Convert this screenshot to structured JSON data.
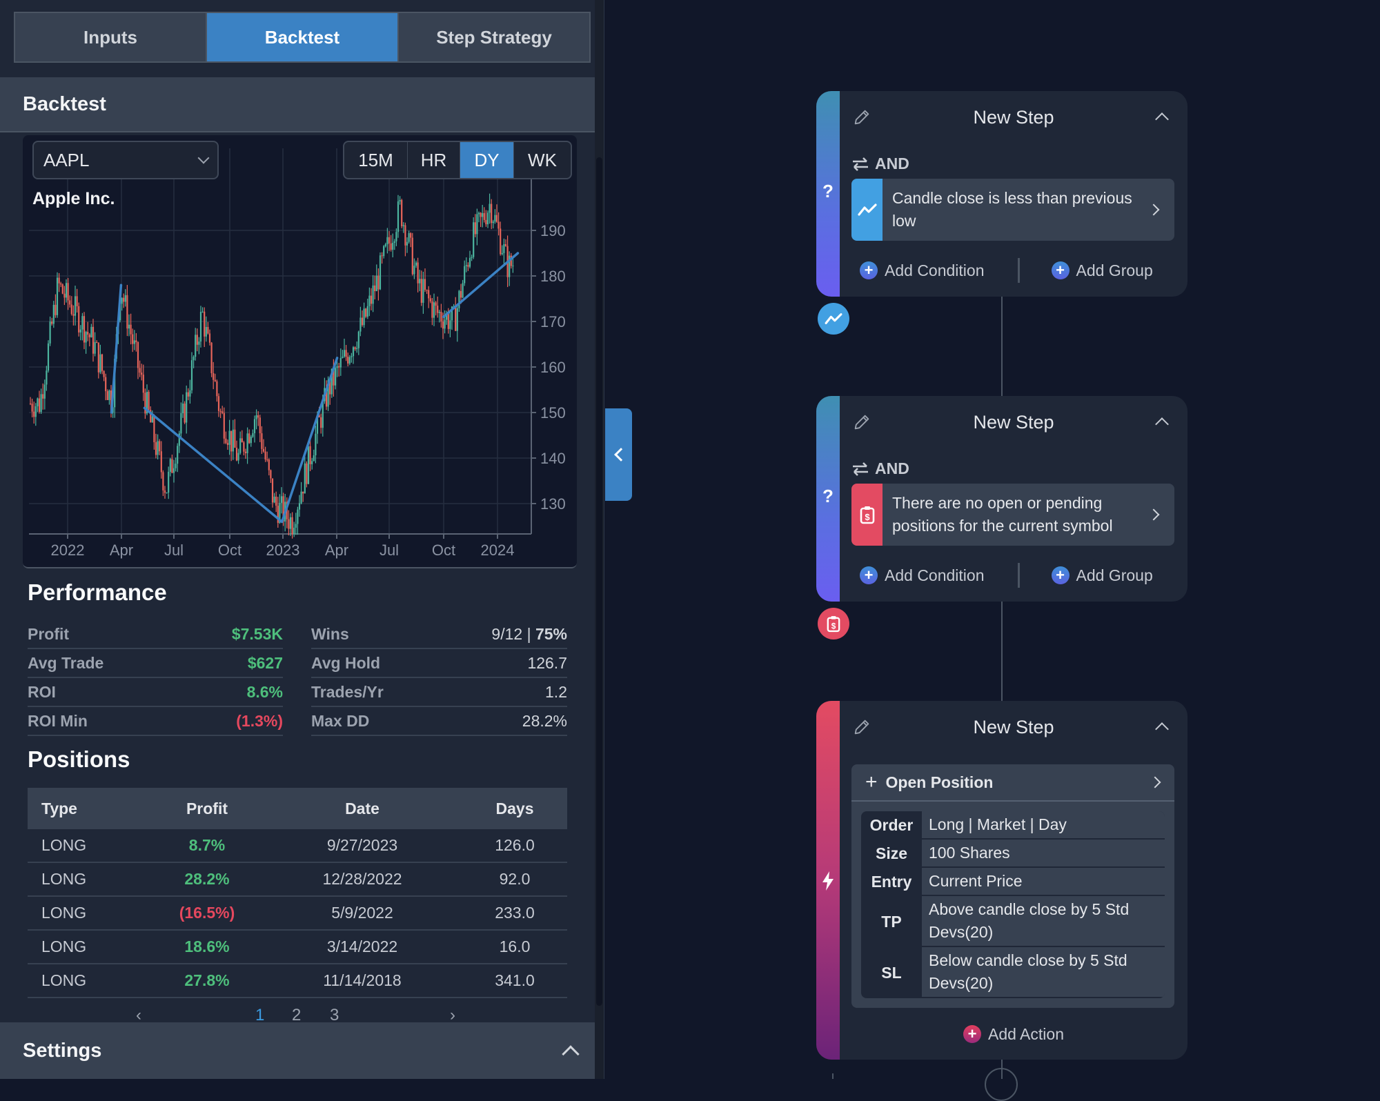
{
  "tabs": [
    {
      "label": "Inputs",
      "active": false
    },
    {
      "label": "Backtest",
      "active": true
    },
    {
      "label": "Step Strategy",
      "active": false
    }
  ],
  "backtest": {
    "title": "Backtest",
    "ticker": "AAPL",
    "timeframes": [
      {
        "label": "15M",
        "active": false
      },
      {
        "label": "HR",
        "active": false
      },
      {
        "label": "DY",
        "active": true
      },
      {
        "label": "WK",
        "active": false
      }
    ],
    "chart_title": "Apple Inc."
  },
  "chart_data": {
    "type": "candlestick",
    "title": "Apple Inc.",
    "symbol": "AAPL",
    "timeframe": "DY",
    "x_ticks": [
      "2022",
      "Apr",
      "Jul",
      "Oct",
      "2023",
      "Apr",
      "Jul",
      "Oct",
      "2024"
    ],
    "y_ticks": [
      130,
      140,
      150,
      160,
      170,
      180,
      190
    ],
    "ylim": [
      124,
      199
    ],
    "grid": true,
    "up_color": "#4db6a0",
    "down_color": "#e8655a",
    "trade_line_color": "#3b82c4",
    "approx_close_path": [
      {
        "date": "2021-11",
        "close": 152
      },
      {
        "date": "2021-12",
        "close": 178
      },
      {
        "date": "2022-01",
        "close": 172
      },
      {
        "date": "2022-02",
        "close": 165
      },
      {
        "date": "2022-03",
        "close": 152
      },
      {
        "date": "2022-03-29",
        "close": 178
      },
      {
        "date": "2022-05",
        "close": 150
      },
      {
        "date": "2022-06",
        "close": 133
      },
      {
        "date": "2022-07",
        "close": 150
      },
      {
        "date": "2022-08",
        "close": 172
      },
      {
        "date": "2022-09",
        "close": 150
      },
      {
        "date": "2022-10",
        "close": 140
      },
      {
        "date": "2022-11",
        "close": 150
      },
      {
        "date": "2022-12",
        "close": 130
      },
      {
        "date": "2023-01",
        "close": 126
      },
      {
        "date": "2023-03",
        "close": 155
      },
      {
        "date": "2023-05",
        "close": 170
      },
      {
        "date": "2023-07",
        "close": 195
      },
      {
        "date": "2023-08",
        "close": 178
      },
      {
        "date": "2023-09",
        "close": 172
      },
      {
        "date": "2023-10",
        "close": 170
      },
      {
        "date": "2023-11",
        "close": 188
      },
      {
        "date": "2023-12",
        "close": 196
      },
      {
        "date": "2024-01",
        "close": 182
      },
      {
        "date": "2024-02",
        "close": 185
      }
    ],
    "trade_lines": [
      {
        "from": {
          "date": "2022-03-14",
          "price": 150
        },
        "to": {
          "date": "2022-03-30",
          "price": 178
        }
      },
      {
        "from": {
          "date": "2022-05-09",
          "price": 151
        },
        "to": {
          "date": "2022-12-28",
          "price": 126
        }
      },
      {
        "from": {
          "date": "2022-12-28",
          "price": 126
        },
        "to": {
          "date": "2023-03-30",
          "price": 162
        }
      },
      {
        "from": {
          "date": "2023-09-27",
          "price": 171
        },
        "to": {
          "date": "2024-01-31",
          "price": 185
        }
      }
    ]
  },
  "performance": {
    "title": "Performance",
    "left": [
      {
        "label": "Profit",
        "value": "$7.53K",
        "tone": "green"
      },
      {
        "label": "Avg Trade",
        "value": "$627",
        "tone": "green"
      },
      {
        "label": "ROI",
        "value": "8.6%",
        "tone": "green"
      },
      {
        "label": "ROI Min",
        "value": "(1.3%)",
        "tone": "red"
      }
    ],
    "right": [
      {
        "label": "Wins",
        "value": "9/12 | ",
        "value_bold": "75%"
      },
      {
        "label": "Avg Hold",
        "value": "126.7"
      },
      {
        "label": "Trades/Yr",
        "value": "1.2"
      },
      {
        "label": "Max DD",
        "value": "28.2%"
      }
    ]
  },
  "positions": {
    "title": "Positions",
    "columns": [
      "Type",
      "Profit",
      "Date",
      "Days"
    ],
    "rows": [
      {
        "type": "LONG",
        "profit": "8.7%",
        "tone": "green",
        "date": "9/27/2023",
        "days": "126.0"
      },
      {
        "type": "LONG",
        "profit": "28.2%",
        "tone": "green",
        "date": "12/28/2022",
        "days": "92.0"
      },
      {
        "type": "LONG",
        "profit": "(16.5%)",
        "tone": "red",
        "date": "5/9/2022",
        "days": "233.0"
      },
      {
        "type": "LONG",
        "profit": "18.6%",
        "tone": "green",
        "date": "3/14/2022",
        "days": "16.0"
      },
      {
        "type": "LONG",
        "profit": "27.8%",
        "tone": "green",
        "date": "11/14/2018",
        "days": "341.0"
      }
    ],
    "pagination": {
      "prev": "‹",
      "pages": [
        "1",
        "2",
        "3"
      ],
      "current": "1",
      "next": "›"
    }
  },
  "settings": {
    "title": "Settings"
  },
  "steps": [
    {
      "title": "New Step",
      "kind": "condition",
      "logic": "AND",
      "condition": "Candle close is less than previous low",
      "condition_icon": "trend-line-icon",
      "condition_color": "#42a0e2",
      "add_condition": "Add Condition",
      "add_group": "Add Group"
    },
    {
      "title": "New Step",
      "kind": "condition",
      "logic": "AND",
      "condition": "There are no open or pending positions for the current symbol",
      "condition_icon": "clipboard-dollar-icon",
      "condition_color": "#e34b62",
      "add_condition": "Add Condition",
      "add_group": "Add Group"
    },
    {
      "title": "New Step",
      "kind": "action",
      "action_label": "Open Position",
      "details": [
        {
          "key": "Order",
          "value": "Long | Market | Day"
        },
        {
          "key": "Size",
          "value": "100 Shares"
        },
        {
          "key": "Entry",
          "value": "Current Price"
        },
        {
          "key": "TP",
          "value": "Above candle close by 5 Std Devs(20)"
        },
        {
          "key": "SL",
          "value": "Below candle close by 5 Std Devs(20)"
        }
      ],
      "add_action": "Add Action"
    }
  ],
  "colors": {
    "accent": "#3b82c4",
    "profit_green": "#4ebf7c",
    "loss_red": "#e5485e",
    "panel_bg": "#1f2737",
    "canvas_bg": "#111729"
  }
}
